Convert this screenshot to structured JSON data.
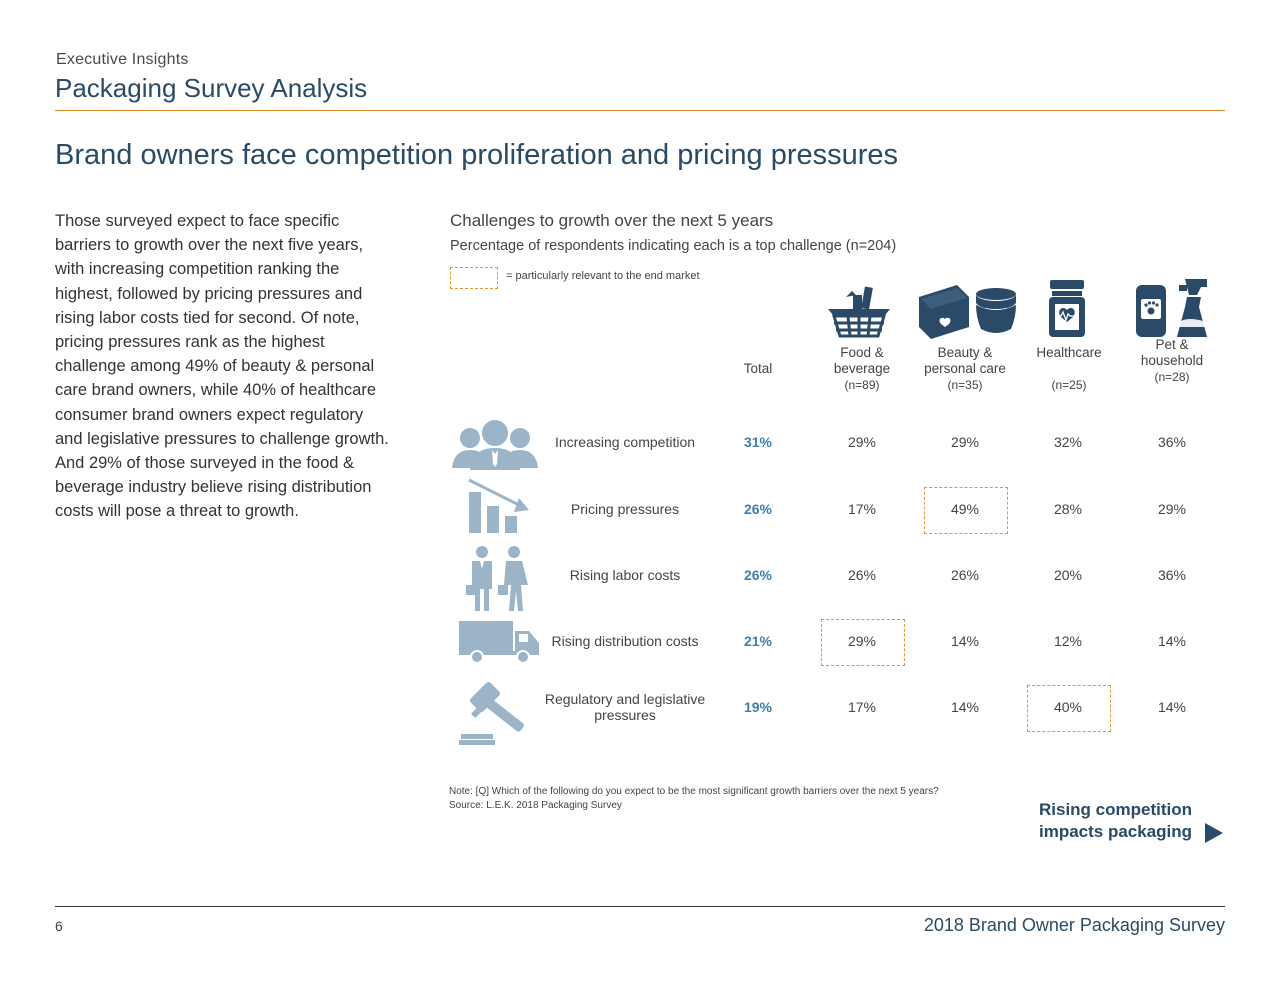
{
  "header": {
    "supertitle": "Executive Insights",
    "title": "Packaging Survey Analysis"
  },
  "headline": "Brand owners face competition proliferation and pricing pressures",
  "body_text": "Those surveyed expect to face specific barriers to growth over the next five years, with increasing competition ranking the highest, followed by pricing pressures and rising labor costs tied for second. Of note, pricing pressures rank as the highest challenge among 49% of beauty & personal care brand owners, while 40% of healthcare consumer brand owners expect regulatory and legislative pressures to challenge growth. And 29% of those surveyed in the food & beverage industry believe rising distribution costs will pose a threat to growth.",
  "chart": {
    "title": "Challenges to growth over the next 5 years",
    "subtitle": "Percentage of respondents indicating each is a top challenge (n=204)",
    "legend": "= particularly relevant to the end market",
    "columns": [
      {
        "label": "Total",
        "n": ""
      },
      {
        "label": "Food & beverage",
        "n": "(n=89)"
      },
      {
        "label": "Beauty & personal care",
        "n": "(n=35)"
      },
      {
        "label": "Healthcare",
        "n": "(n=25)"
      },
      {
        "label": "Pet & household",
        "n": "(n=28)"
      }
    ],
    "icon_names": [
      "basket-icon",
      "cosmetics-icon",
      "medicine-jar-icon",
      "pet-cleaner-icon"
    ],
    "row_icon_names": [
      "people-icon",
      "declining-chart-icon",
      "workers-icon",
      "truck-icon",
      "gavel-icon"
    ],
    "colors": {
      "accent": "#e8952d",
      "total": "#3d7fb2",
      "icon_dark": "#2a4a67",
      "icon_light": "#9bb4c8"
    }
  },
  "chart_data": {
    "type": "table",
    "title": "Challenges to growth over the next 5 years",
    "columns": [
      "Total",
      "Food & beverage (n=89)",
      "Beauty & personal care (n=35)",
      "Healthcare (n=25)",
      "Pet & household (n=28)"
    ],
    "rows": [
      {
        "label": "Increasing competition",
        "values": [
          "31%",
          "29%",
          "29%",
          "32%",
          "36%"
        ],
        "highlight": []
      },
      {
        "label": "Pricing pressures",
        "values": [
          "26%",
          "17%",
          "49%",
          "28%",
          "29%"
        ],
        "highlight": [
          2
        ]
      },
      {
        "label": "Rising labor costs",
        "values": [
          "26%",
          "26%",
          "26%",
          "20%",
          "36%"
        ],
        "highlight": []
      },
      {
        "label": "Rising distribution costs",
        "values": [
          "21%",
          "29%",
          "14%",
          "12%",
          "14%"
        ],
        "highlight": [
          1
        ]
      },
      {
        "label": "Regulatory and legislative pressures",
        "values": [
          "19%",
          "17%",
          "14%",
          "40%",
          "14%"
        ],
        "highlight": [
          3
        ]
      }
    ]
  },
  "note": "Note: [Q] Which of the following do you expect to be the most significant growth barriers over the next 5 years?",
  "source": "Source: L.E.K. 2018 Packaging Survey",
  "cta": "Rising competition impacts packaging",
  "footer": {
    "page_number": "6",
    "title": "2018 Brand Owner Packaging Survey"
  }
}
